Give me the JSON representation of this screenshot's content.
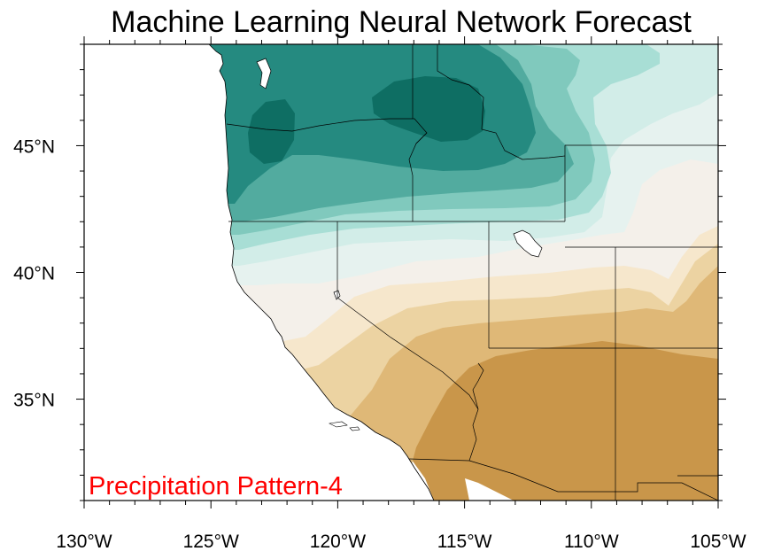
{
  "title": "Machine Learning Neural Network Forecast",
  "panel_label": "Precipitation Pattern-4",
  "colors": {
    "label_red": "#ff0000",
    "wet_darkest": "#0e6e63",
    "wet_dark": "#258a80",
    "wet_mid": "#52ab9f",
    "wet_light": "#80c9bd",
    "wet_lighter": "#a8ded5",
    "wet_faint": "#d2ede8",
    "near_normal_cool": "#e6f2ef",
    "near_normal_warm": "#f4f0ea",
    "dry_faint": "#f6e7cc",
    "dry_light": "#ecd3a2",
    "dry_mid": "#dfb877",
    "dry_dark": "#c9964a"
  },
  "map": {
    "projection": "cylindrical equidistant",
    "lon_range": [
      -130,
      -105
    ],
    "lat_range": [
      31,
      49
    ],
    "boundaries": [
      "coastline",
      "state borders",
      "international border"
    ]
  },
  "axes": {
    "x_ticks": [
      {
        "label": "130°W"
      },
      {
        "label": "125°W"
      },
      {
        "label": "120°W"
      },
      {
        "label": "115°W"
      },
      {
        "label": "110°W"
      },
      {
        "label": "105°W"
      }
    ],
    "y_ticks": [
      {
        "label": "45°N"
      },
      {
        "label": "40°N"
      },
      {
        "label": "35°N"
      }
    ]
  }
}
